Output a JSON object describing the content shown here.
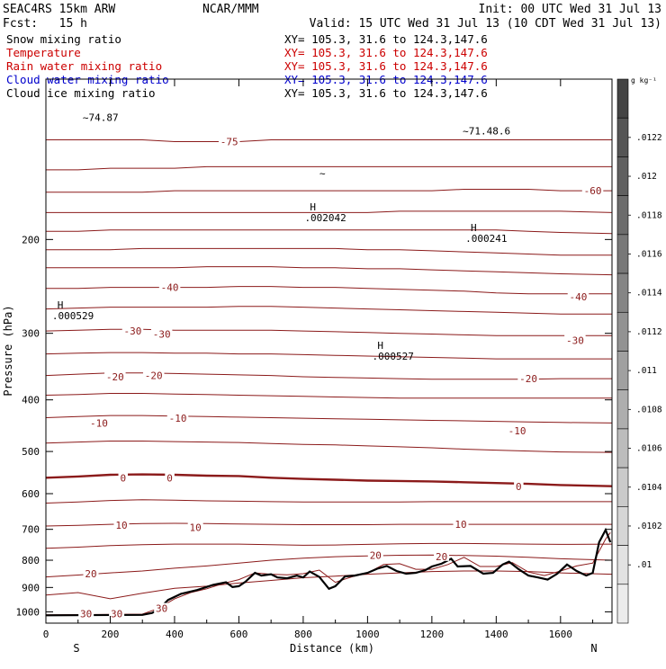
{
  "header": {
    "model": "SEAC4RS 15km ARW",
    "center": "NCAR/MMM",
    "init": "Init: 00 UTC Wed 31 Jul 13",
    "fcst": "Fcst:   15 h",
    "valid": "Valid: 15 UTC Wed 31 Jul 13 (10 CDT Wed 31 Jul 13)"
  },
  "fields": [
    {
      "name": "Snow mixing ratio",
      "xy": "",
      "color": "#000000"
    },
    {
      "name": "Temperature",
      "xy": "XY= 105.3, 31.6 to 124.3,147.6",
      "color": "#cc0000"
    },
    {
      "name": "Rain water mixing ratio",
      "xy": "XY= 105.3, 31.6 to 124.3,147.6",
      "color": "#cc0000"
    },
    {
      "name": "Cloud water mixing ratio",
      "xy": "XY= 105.3, 31.6 to 124.3,147.6",
      "color": "#0000cc"
    },
    {
      "name": "Cloud ice mixing ratio",
      "xy": "XY= 105.3, 31.6 to 124.3,147.6",
      "color": "#000000"
    }
  ],
  "xy_first": "XY= 105.3, 31.6 to 124.3,147.6",
  "chart_data": {
    "type": "line",
    "xlabel": "Distance (km)",
    "ylabel": "Pressure (hPa)",
    "xlim": [
      0,
      1760
    ],
    "ylim": [
      1050,
      100
    ],
    "y_scale": "log",
    "x_ticks": [
      0,
      200,
      400,
      600,
      800,
      1000,
      1200,
      1400,
      1600
    ],
    "y_ticks": [
      200,
      300,
      400,
      500,
      600,
      700,
      800,
      900,
      1000
    ],
    "end_labels": {
      "left": "S",
      "right": "N"
    },
    "colorbar": {
      "unit": "g kg⁻¹",
      "labels": [
        ".0122",
        ".012",
        ".0118",
        ".0116",
        ".0114",
        ".0112",
        ".011",
        ".0108",
        ".0106",
        ".0104",
        ".0102",
        ".01"
      ],
      "colors": [
        "#444444",
        "#555555",
        "#606060",
        "#6c6c6c",
        "#787878",
        "#858585",
        "#929292",
        "#a0a0a0",
        "#aeaeae",
        "#bcbcbc",
        "#cacaca",
        "#d6d6d6",
        "#e2e2e2",
        "#ececec"
      ]
    },
    "terrain": {
      "x": [
        0,
        300,
        330,
        350,
        380,
        420,
        470,
        520,
        560,
        580,
        600,
        620,
        650,
        670,
        700,
        720,
        750,
        780,
        800,
        820,
        850,
        880,
        900,
        930,
        960,
        1000,
        1030,
        1060,
        1090,
        1120,
        1150,
        1180,
        1200,
        1230,
        1260,
        1280,
        1320,
        1360,
        1390,
        1420,
        1440,
        1470,
        1500,
        1530,
        1560,
        1590,
        1620,
        1650,
        1680,
        1700,
        1720,
        1740,
        1755
      ],
      "p": [
        1015,
        1013,
        1005,
        990,
        950,
        925,
        910,
        890,
        880,
        898,
        895,
        878,
        845,
        855,
        850,
        862,
        865,
        855,
        862,
        840,
        860,
        905,
        895,
        858,
        855,
        845,
        830,
        820,
        838,
        848,
        845,
        835,
        822,
        812,
        795,
        822,
        820,
        848,
        845,
        815,
        805,
        832,
        855,
        862,
        870,
        848,
        815,
        838,
        855,
        845,
        740,
        702,
        740
      ]
    },
    "isotherms": [
      {
        "label": "-75",
        "p": [
          130,
          130,
          130,
          130,
          131,
          131,
          131,
          130,
          130,
          130,
          130,
          130,
          130,
          130,
          130,
          130,
          130,
          130
        ]
      },
      {
        "label": "",
        "p": [
          148,
          148,
          147,
          147,
          147,
          146,
          146,
          146,
          146,
          146,
          146,
          146,
          146,
          146,
          146,
          146,
          146,
          146
        ]
      },
      {
        "label": "",
        "p": [
          163,
          163,
          163,
          163,
          162,
          162,
          162,
          162,
          162,
          162,
          162,
          162,
          162,
          161,
          161,
          161,
          162,
          162
        ]
      },
      {
        "label": "",
        "p": [
          178,
          178,
          178,
          178,
          178,
          178,
          178,
          178,
          178,
          178,
          178,
          177,
          177,
          177,
          177,
          177,
          177,
          178
        ]
      },
      {
        "label": "",
        "p": [
          193,
          193,
          192,
          192,
          192,
          192,
          192,
          192,
          192,
          192,
          192,
          192,
          192,
          192,
          192,
          193,
          194,
          195
        ]
      },
      {
        "label": "",
        "p": [
          209,
          209,
          209,
          208,
          208,
          208,
          208,
          208,
          208,
          208,
          209,
          209,
          210,
          211,
          212,
          213,
          214,
          214
        ]
      },
      {
        "label": "",
        "p": [
          226,
          226,
          226,
          226,
          226,
          225,
          225,
          225,
          226,
          226,
          227,
          227,
          228,
          229,
          230,
          231,
          232,
          233
        ]
      },
      {
        "label": "-40",
        "p": [
          247,
          247,
          246,
          246,
          246,
          246,
          245,
          245,
          246,
          246,
          247,
          248,
          249,
          250,
          252,
          253,
          253,
          253
        ]
      },
      {
        "label": "",
        "p": [
          270,
          269,
          268,
          268,
          268,
          268,
          267,
          267,
          268,
          269,
          270,
          271,
          272,
          273,
          274,
          275,
          276,
          276
        ]
      },
      {
        "label": "-30",
        "p": [
          297,
          296,
          295,
          295,
          296,
          296,
          296,
          296,
          297,
          298,
          299,
          300,
          301,
          302,
          303,
          303,
          303,
          303
        ]
      },
      {
        "label": "",
        "p": [
          328,
          327,
          326,
          326,
          327,
          327,
          328,
          328,
          329,
          330,
          331,
          332,
          333,
          334,
          335,
          335,
          335,
          335
        ]
      },
      {
        "label": "-20",
        "p": [
          360,
          358,
          356,
          356,
          357,
          358,
          359,
          360,
          362,
          363,
          364,
          365,
          366,
          366,
          366,
          366,
          365,
          365
        ]
      },
      {
        "label": "",
        "p": [
          392,
          391,
          389,
          389,
          390,
          391,
          392,
          393,
          394,
          395,
          396,
          397,
          397,
          397,
          397,
          397,
          397,
          397
        ]
      },
      {
        "label": "-10",
        "p": [
          432,
          430,
          428,
          428,
          429,
          430,
          431,
          432,
          433,
          434,
          435,
          436,
          437,
          438,
          439,
          440,
          441,
          442
        ]
      },
      {
        "label": "",
        "p": [
          482,
          480,
          478,
          478,
          479,
          480,
          481,
          483,
          485,
          486,
          488,
          490,
          492,
          495,
          497,
          499,
          501,
          502
        ]
      },
      {
        "label": "0",
        "p": [
          560,
          557,
          553,
          552,
          553,
          555,
          556,
          560,
          563,
          565,
          567,
          568,
          569,
          571,
          573,
          575,
          578,
          581
        ],
        "bold": true
      },
      {
        "label": "",
        "p": [
          625,
          622,
          618,
          616,
          617,
          619,
          620,
          621,
          622,
          622,
          622,
          622,
          621,
          621,
          621,
          621,
          621,
          621
        ]
      },
      {
        "label": "10",
        "p": [
          690,
          688,
          685,
          683,
          682,
          683,
          684,
          685,
          686,
          686,
          686,
          685,
          685,
          685,
          685,
          685,
          685,
          685
        ]
      },
      {
        "label": "",
        "p": [
          760,
          756,
          751,
          748,
          746,
          746,
          746,
          748,
          750,
          749,
          747,
          745,
          744,
          744,
          745,
          746,
          747,
          746
        ]
      },
      {
        "label": "20",
        "p": [
          860,
          853,
          845,
          838,
          828,
          820,
          810,
          800,
          793,
          788,
          785,
          783,
          782,
          784,
          786,
          790,
          795,
          800
        ]
      },
      {
        "label": "",
        "p": [
          930,
          920,
          945,
          923,
          903,
          895,
          883,
          873,
          863,
          857,
          850,
          845,
          840,
          838,
          838,
          840,
          845,
          850
        ]
      }
    ],
    "isotherm_x": [
      0,
      100,
      200,
      300,
      400,
      500,
      600,
      700,
      800,
      900,
      1000,
      1100,
      1200,
      1300,
      1400,
      1500,
      1600,
      1760
    ],
    "lower_contour": {
      "x": [
        0,
        300,
        350,
        400,
        450,
        500,
        550,
        600,
        650,
        700,
        750,
        800,
        850,
        900,
        950,
        1000,
        1050,
        1100,
        1150,
        1200,
        1250,
        1300,
        1350,
        1400,
        1450,
        1500,
        1550,
        1600,
        1650,
        1700,
        1740,
        1755
      ],
      "p": [
        1013,
        1010,
        985,
        945,
        920,
        905,
        885,
        870,
        845,
        850,
        852,
        848,
        835,
        880,
        860,
        845,
        815,
        812,
        832,
        832,
        815,
        790,
        822,
        822,
        808,
        842,
        855,
        838,
        820,
        810,
        730,
        710
      ]
    },
    "labels": [
      {
        "text": "-75",
        "x": 570,
        "p": 131
      },
      {
        "text": "-60",
        "x": 1700,
        "p": 162
      },
      {
        "text": "-40",
        "x": 385,
        "p": 246
      },
      {
        "text": "-40",
        "x": 1655,
        "p": 256
      },
      {
        "text": "-30",
        "x": 270,
        "p": 297
      },
      {
        "text": "-30",
        "x": 360,
        "p": 301
      },
      {
        "text": "-30",
        "x": 1645,
        "p": 309
      },
      {
        "text": "-20",
        "x": 215,
        "p": 362
      },
      {
        "text": "-20",
        "x": 335,
        "p": 360
      },
      {
        "text": "-20",
        "x": 1500,
        "p": 365
      },
      {
        "text": "-10",
        "x": 165,
        "p": 442
      },
      {
        "text": "-10",
        "x": 410,
        "p": 433
      },
      {
        "text": "-10",
        "x": 1465,
        "p": 457
      },
      {
        "text": "0",
        "x": 240,
        "p": 560
      },
      {
        "text": "0",
        "x": 385,
        "p": 560
      },
      {
        "text": "0",
        "x": 1470,
        "p": 582
      },
      {
        "text": "10",
        "x": 235,
        "p": 688
      },
      {
        "text": "10",
        "x": 465,
        "p": 694
      },
      {
        "text": "10",
        "x": 1290,
        "p": 685
      },
      {
        "text": "20",
        "x": 140,
        "p": 848
      },
      {
        "text": "20",
        "x": 1025,
        "p": 783
      },
      {
        "text": "20",
        "x": 1230,
        "p": 787
      },
      {
        "text": "30",
        "x": 125,
        "p": 1008
      },
      {
        "text": "30",
        "x": 220,
        "p": 1008
      },
      {
        "text": "30",
        "x": 360,
        "p": 985
      }
    ],
    "extrema": [
      {
        "letter": "H",
        "value": ".002042",
        "x": 830,
        "p": 182
      },
      {
        "letter": "H",
        "value": ".000241",
        "x": 1330,
        "p": 199
      },
      {
        "letter": "H",
        "value": ".000529",
        "x": 45,
        "p": 278
      },
      {
        "letter": "H",
        "value": ".000527",
        "x": 1040,
        "p": 331
      }
    ],
    "top_labels": [
      {
        "text": "~74.87",
        "x": 170,
        "p": 118
      },
      {
        "text": "~71.48.6",
        "x": 1370,
        "p": 125
      },
      {
        "text": "~",
        "x": 860,
        "p": 150
      }
    ]
  }
}
